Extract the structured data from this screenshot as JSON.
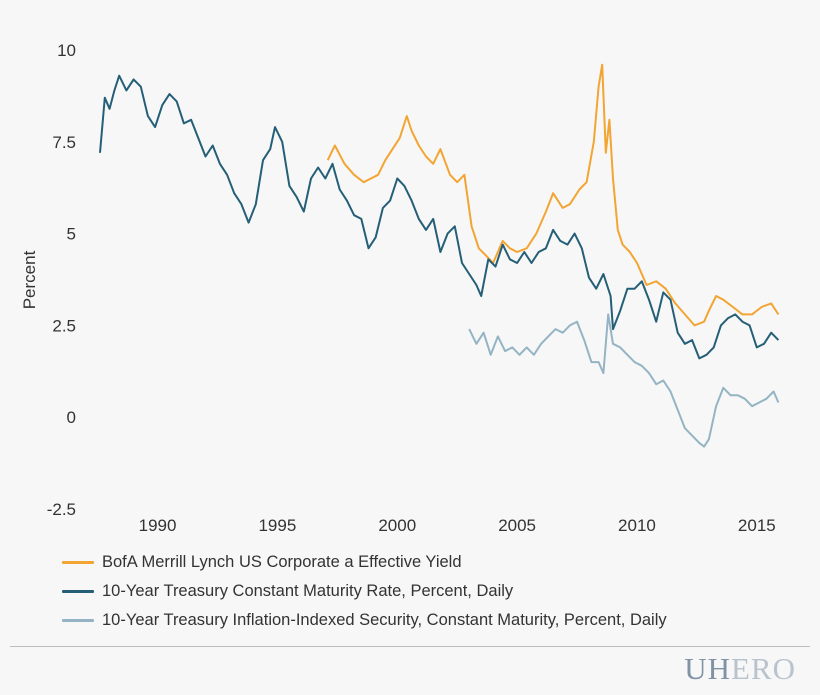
{
  "chart_data": {
    "type": "line",
    "title": "",
    "xlabel": "",
    "ylabel": "Percent",
    "xlim": [
      1987.6,
      2016.3
    ],
    "ylim": [
      -2.5,
      10
    ],
    "xticks": [
      "1990",
      "1995",
      "2000",
      "2005",
      "2010",
      "2015"
    ],
    "yticks": [
      "10",
      "7.5",
      "5",
      "2.5",
      "0",
      "-2.5"
    ],
    "grid": false,
    "legend_position": "bottom",
    "series": [
      {
        "name": "BofA Merrill Lynch US Corporate a Effective Yield",
        "color": "#f2a533",
        "x": [
          1997.1,
          1997.4,
          1997.8,
          1998.2,
          1998.6,
          1998.9,
          1999.2,
          1999.5,
          1999.8,
          2000.1,
          2000.4,
          2000.6,
          2000.9,
          2001.2,
          2001.5,
          2001.8,
          2002.2,
          2002.5,
          2002.8,
          2003.1,
          2003.4,
          2003.7,
          2004.0,
          2004.4,
          2004.7,
          2005.0,
          2005.4,
          2005.8,
          2006.2,
          2006.5,
          2006.9,
          2007.2,
          2007.6,
          2007.9,
          2008.2,
          2008.4,
          2008.55,
          2008.7,
          2008.85,
          2009.0,
          2009.2,
          2009.4,
          2009.7,
          2010.0,
          2010.4,
          2010.8,
          2011.2,
          2011.6,
          2012.0,
          2012.4,
          2012.8,
          2013.0,
          2013.3,
          2013.6,
          2014.0,
          2014.4,
          2014.8,
          2015.2,
          2015.6,
          2015.9
        ],
        "y": [
          7.0,
          7.4,
          6.9,
          6.6,
          6.4,
          6.5,
          6.6,
          7.0,
          7.3,
          7.6,
          8.2,
          7.8,
          7.4,
          7.1,
          6.9,
          7.3,
          6.6,
          6.4,
          6.6,
          5.2,
          4.6,
          4.4,
          4.2,
          4.8,
          4.6,
          4.5,
          4.6,
          5.0,
          5.6,
          6.1,
          5.7,
          5.8,
          6.2,
          6.4,
          7.5,
          9.0,
          9.6,
          7.2,
          8.1,
          6.5,
          5.1,
          4.7,
          4.5,
          4.2,
          3.6,
          3.7,
          3.5,
          3.1,
          2.8,
          2.5,
          2.6,
          2.9,
          3.3,
          3.2,
          3.0,
          2.8,
          2.8,
          3.0,
          3.1,
          2.8
        ]
      },
      {
        "name": "10-Year Treasury Constant Maturity Rate, Percent, Daily",
        "color": "#255f77",
        "x": [
          1987.6,
          1987.8,
          1988.0,
          1988.2,
          1988.4,
          1988.7,
          1989.0,
          1989.3,
          1989.6,
          1989.9,
          1990.2,
          1990.5,
          1990.8,
          1991.1,
          1991.4,
          1991.7,
          1992.0,
          1992.3,
          1992.6,
          1992.9,
          1993.2,
          1993.5,
          1993.8,
          1994.1,
          1994.4,
          1994.7,
          1994.9,
          1995.2,
          1995.5,
          1995.8,
          1996.1,
          1996.4,
          1996.7,
          1997.0,
          1997.3,
          1997.6,
          1997.9,
          1998.2,
          1998.5,
          1998.8,
          1999.1,
          1999.4,
          1999.7,
          2000.0,
          2000.3,
          2000.6,
          2000.9,
          2001.2,
          2001.5,
          2001.8,
          2002.1,
          2002.4,
          2002.7,
          2003.0,
          2003.3,
          2003.5,
          2003.8,
          2004.1,
          2004.4,
          2004.7,
          2005.0,
          2005.3,
          2005.6,
          2005.9,
          2006.2,
          2006.5,
          2006.8,
          2007.1,
          2007.4,
          2007.7,
          2008.0,
          2008.3,
          2008.6,
          2008.9,
          2009.0,
          2009.3,
          2009.6,
          2009.9,
          2010.2,
          2010.5,
          2010.8,
          2011.1,
          2011.4,
          2011.7,
          2012.0,
          2012.3,
          2012.6,
          2012.9,
          2013.2,
          2013.5,
          2013.8,
          2014.1,
          2014.4,
          2014.7,
          2015.0,
          2015.3,
          2015.6,
          2015.9
        ],
        "y": [
          7.2,
          8.7,
          8.4,
          8.9,
          9.3,
          8.9,
          9.2,
          9.0,
          8.2,
          7.9,
          8.5,
          8.8,
          8.6,
          8.0,
          8.1,
          7.6,
          7.1,
          7.4,
          6.9,
          6.6,
          6.1,
          5.8,
          5.3,
          5.8,
          7.0,
          7.3,
          7.9,
          7.5,
          6.3,
          6.0,
          5.6,
          6.5,
          6.8,
          6.5,
          6.9,
          6.2,
          5.9,
          5.5,
          5.4,
          4.6,
          4.9,
          5.7,
          5.9,
          6.5,
          6.3,
          5.9,
          5.4,
          5.1,
          5.4,
          4.5,
          5.0,
          5.2,
          4.2,
          3.9,
          3.6,
          3.3,
          4.3,
          4.1,
          4.7,
          4.3,
          4.2,
          4.5,
          4.2,
          4.5,
          4.6,
          5.1,
          4.8,
          4.7,
          5.0,
          4.6,
          3.8,
          3.5,
          3.9,
          3.3,
          2.4,
          2.9,
          3.5,
          3.5,
          3.7,
          3.2,
          2.6,
          3.4,
          3.2,
          2.3,
          2.0,
          2.1,
          1.6,
          1.7,
          1.9,
          2.5,
          2.7,
          2.8,
          2.6,
          2.5,
          1.9,
          2.0,
          2.3,
          2.1
        ]
      },
      {
        "name": "10-Year Treasury Inflation-Indexed Security, Constant Maturity, Percent, Daily",
        "color": "#94b4c4",
        "x": [
          2003.0,
          2003.3,
          2003.6,
          2003.9,
          2004.2,
          2004.5,
          2004.8,
          2005.1,
          2005.4,
          2005.7,
          2006.0,
          2006.3,
          2006.6,
          2006.9,
          2007.2,
          2007.5,
          2007.8,
          2008.1,
          2008.4,
          2008.6,
          2008.8,
          2009.0,
          2009.3,
          2009.6,
          2009.9,
          2010.2,
          2010.5,
          2010.8,
          2011.1,
          2011.4,
          2011.7,
          2012.0,
          2012.3,
          2012.6,
          2012.8,
          2013.0,
          2013.3,
          2013.6,
          2013.9,
          2014.2,
          2014.5,
          2014.8,
          2015.1,
          2015.4,
          2015.7,
          2015.9
        ],
        "y": [
          2.4,
          2.0,
          2.3,
          1.7,
          2.2,
          1.8,
          1.9,
          1.7,
          1.9,
          1.7,
          2.0,
          2.2,
          2.4,
          2.3,
          2.5,
          2.6,
          2.1,
          1.5,
          1.5,
          1.2,
          2.8,
          2.0,
          1.9,
          1.7,
          1.5,
          1.4,
          1.2,
          0.9,
          1.0,
          0.7,
          0.2,
          -0.3,
          -0.5,
          -0.7,
          -0.8,
          -0.6,
          0.3,
          0.8,
          0.6,
          0.6,
          0.5,
          0.3,
          0.4,
          0.5,
          0.7,
          0.4
        ]
      }
    ]
  },
  "logo": {
    "part1": "UH",
    "part2": "ERO"
  }
}
